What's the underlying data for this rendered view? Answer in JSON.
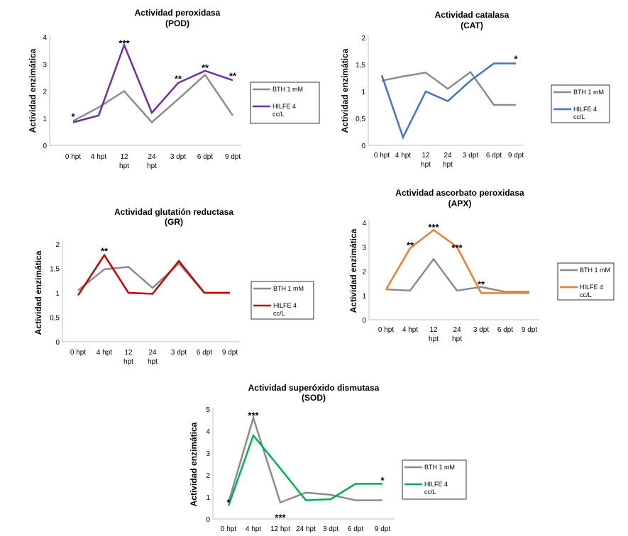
{
  "chart_data": [
    {
      "id": "pod",
      "type": "line",
      "title": "Actividad peroxidasa",
      "subtitle": "(POD)",
      "ylabel": "Actividad enzimática",
      "categories": [
        "0 hpt",
        "4 hpt",
        "12 hpt",
        "24 hpt",
        "3 dpt",
        "6 dpt",
        "9 dpt"
      ],
      "ylim": [
        0,
        4
      ],
      "yticks": [
        "0",
        "1",
        "2",
        "3",
        "4"
      ],
      "series": [
        {
          "name": "BTH 1 mM",
          "color": "#8c8c8c",
          "values": [
            0.9,
            1.4,
            2.0,
            0.85,
            1.7,
            2.6,
            1.1
          ]
        },
        {
          "name": "HILFE 4 cc/L",
          "color": "#7030a0",
          "values": [
            0.85,
            1.1,
            3.7,
            1.2,
            2.3,
            2.75,
            2.4
          ]
        }
      ],
      "annotations": [
        {
          "x": "0 hpt",
          "y": 1.05,
          "text": "*"
        },
        {
          "x": "12 hpt",
          "y": 3.75,
          "text": "***"
        },
        {
          "x": "3 dpt",
          "y": 2.45,
          "text": "**"
        },
        {
          "x": "6 dpt",
          "y": 2.85,
          "text": "**"
        },
        {
          "x": "9 dpt",
          "y": 2.55,
          "text": "**"
        }
      ]
    },
    {
      "id": "cat",
      "type": "line",
      "title": "Actividad catalasa",
      "subtitle": "(CAT)",
      "ylabel": "Actividad enzimática",
      "categories": [
        "0 hpt",
        "4 hpt",
        "12 hpt",
        "24 hpt",
        "3 dpt",
        "6 dpt",
        "9 dpt"
      ],
      "ylim": [
        0,
        2
      ],
      "yticks": [
        "0",
        "0,5",
        "1",
        "1,5",
        "2"
      ],
      "series": [
        {
          "name": "BTH 1 mM",
          "color": "#8c8c8c",
          "values": [
            1.2,
            1.28,
            1.35,
            1.05,
            1.36,
            0.75,
            0.75
          ]
        },
        {
          "name": "HILFE 4 cc/L",
          "color": "#4472c4",
          "values": [
            1.3,
            0.15,
            1.0,
            0.82,
            1.2,
            1.52,
            1.52
          ]
        }
      ],
      "annotations": [
        {
          "x": "9 dpt",
          "y": 1.6,
          "text": "*"
        }
      ]
    },
    {
      "id": "gr",
      "type": "line",
      "title": "Actividad glutatión reductasa",
      "subtitle": "(GR)",
      "ylabel": "Actividad enzimática",
      "categories": [
        "0 hpt",
        "4 hpt",
        "12 hpt",
        "24 hpt",
        "3 dpt",
        "6 dpt",
        "9 dpt"
      ],
      "ylim": [
        0,
        2
      ],
      "yticks": [
        "0",
        "0,5",
        "1",
        "1,5",
        "2"
      ],
      "series": [
        {
          "name": "BTH 1 mM",
          "color": "#8c8c8c",
          "values": [
            1.05,
            1.48,
            1.53,
            1.1,
            1.6,
            1.0,
            1.0
          ]
        },
        {
          "name": "HILFE 4 cc/L",
          "color": "#c00000",
          "values": [
            0.95,
            1.77,
            1.0,
            0.98,
            1.65,
            1.0,
            1.0
          ]
        }
      ],
      "annotations": [
        {
          "x": "4 hpt",
          "y": 1.85,
          "text": "**"
        }
      ]
    },
    {
      "id": "apx",
      "type": "line",
      "title": "Actividad ascorbato peroxidasa",
      "subtitle": "(APX)",
      "ylabel": "Actividad enzimática",
      "categories": [
        "0 hpt",
        "4 hpt",
        "12 hpt",
        "24 hpt",
        "3 dpt",
        "6 dpt",
        "9 dpt"
      ],
      "ylim": [
        0,
        4
      ],
      "yticks": [
        "0",
        "1",
        "2",
        "3",
        "4"
      ],
      "series": [
        {
          "name": "BTH 1 mM",
          "color": "#8c8c8c",
          "values": [
            1.25,
            1.2,
            2.5,
            1.2,
            1.35,
            1.15,
            1.15
          ]
        },
        {
          "name": "HILFE 4 cc/L",
          "color": "#ed7d31",
          "values": [
            1.25,
            2.95,
            3.7,
            3.0,
            1.1,
            1.1,
            1.1
          ]
        }
      ],
      "annotations": [
        {
          "x": "4 hpt",
          "y": 3.05,
          "text": "**"
        },
        {
          "x": "12 hpt",
          "y": 3.8,
          "text": "***"
        },
        {
          "x": "24 hpt",
          "y": 2.95,
          "text": "***"
        },
        {
          "x": "3 dpt",
          "y": 1.45,
          "text": "**"
        }
      ]
    },
    {
      "id": "sod",
      "type": "line",
      "title": "Actividad superóxido dismutasa",
      "subtitle": "(SOD)",
      "ylabel": "Actividad enzimática",
      "categories": [
        "0 hpt",
        "4 hpt",
        "12 hpt",
        "24 hpt",
        "3 dpt",
        "6 dpt",
        "9 dpt"
      ],
      "ylim": [
        0,
        5
      ],
      "yticks": [
        "0",
        "1",
        "2",
        "3",
        "4",
        "5"
      ],
      "series": [
        {
          "name": "BTH 1 mM",
          "color": "#8c8c8c",
          "values": [
            0.75,
            4.6,
            0.75,
            1.2,
            1.1,
            0.85,
            0.85
          ]
        },
        {
          "name": "HILFE 4 cc/L",
          "color": "#00b050",
          "values": [
            0.6,
            3.8,
            2.3,
            0.85,
            0.9,
            1.6,
            1.6
          ]
        }
      ],
      "annotations": [
        {
          "x": "0 hpt",
          "y": 0.75,
          "text": "*"
        },
        {
          "x": "4 hpt",
          "y": 4.7,
          "text": "***"
        },
        {
          "x": "12 hpt",
          "y": 0.05,
          "text": "***"
        },
        {
          "x": "9 dpt",
          "y": 1.75,
          "text": "*"
        }
      ]
    }
  ]
}
